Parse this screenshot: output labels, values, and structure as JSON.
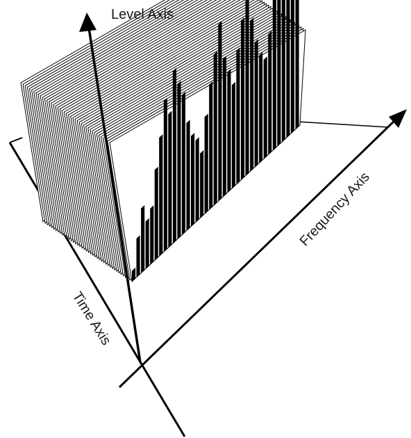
{
  "labels": {
    "level_axis": "Level Axis",
    "frequency_axis": "Frequency Axis",
    "time_axis": "Time Axis"
  },
  "spectrum": {
    "bar_levels": [
      5,
      18,
      30,
      22,
      26,
      42,
      55,
      70,
      62,
      80,
      72,
      65,
      50,
      42,
      38,
      30,
      45,
      58,
      70,
      82,
      64,
      56,
      48,
      62,
      74,
      88,
      70,
      58,
      50,
      46,
      56,
      72,
      82,
      94,
      78,
      70,
      62
    ],
    "frame_count": 42
  },
  "colors": {
    "ink": "#000000",
    "paper": "#ffffff"
  }
}
